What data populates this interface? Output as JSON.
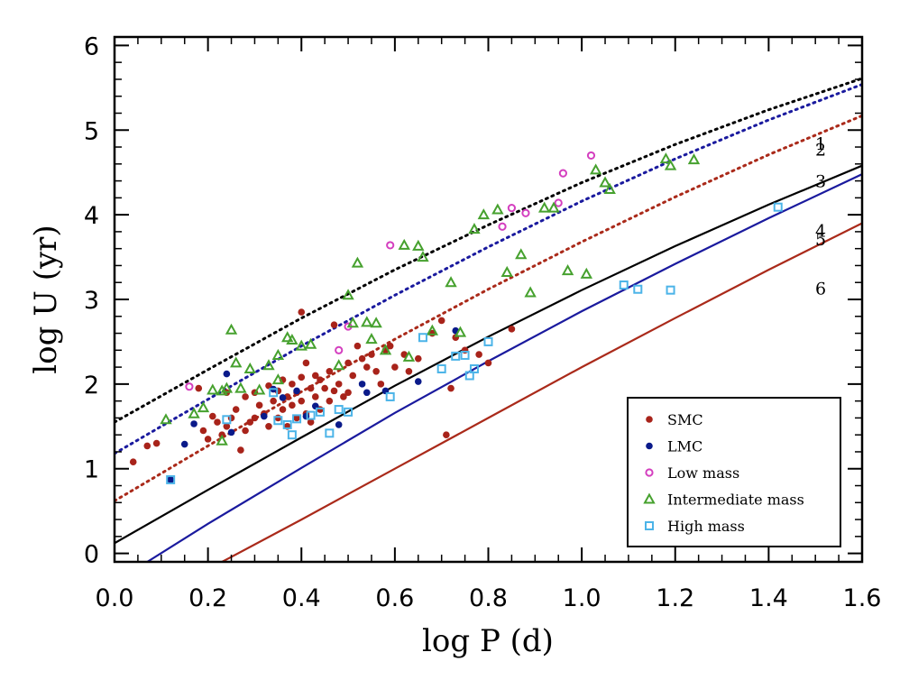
{
  "chart_data": {
    "type": "scatter",
    "title": "",
    "xlabel": "log P (d)",
    "ylabel": "log U (yr)",
    "xlim": [
      0.0,
      1.6
    ],
    "ylim": [
      -0.1,
      6.1
    ],
    "x_ticks": [
      {
        "value": 0.0,
        "label": "0.0"
      },
      {
        "value": 0.2,
        "label": "0.2"
      },
      {
        "value": 0.4,
        "label": "0.4"
      },
      {
        "value": 0.6,
        "label": "0.6"
      },
      {
        "value": 0.8,
        "label": "0.8"
      },
      {
        "value": 1.0,
        "label": "1.0"
      },
      {
        "value": 1.2,
        "label": "1.2"
      },
      {
        "value": 1.4,
        "label": "1.4"
      },
      {
        "value": 1.6,
        "label": "1.6"
      }
    ],
    "y_ticks": [
      {
        "value": 0,
        "label": "0"
      },
      {
        "value": 1,
        "label": "1"
      },
      {
        "value": 2,
        "label": "2"
      },
      {
        "value": 3,
        "label": "3"
      },
      {
        "value": 4,
        "label": "4"
      },
      {
        "value": 5,
        "label": "5"
      },
      {
        "value": 6,
        "label": "6"
      }
    ],
    "grid": false,
    "legend_position": "bottom-right",
    "curves": [
      {
        "label": "1",
        "color": "#000000",
        "style": "dotted",
        "x": [
          0.0,
          0.2,
          0.4,
          0.6,
          0.8,
          1.0,
          1.2,
          1.4,
          1.6
        ],
        "y": [
          1.55,
          2.17,
          2.78,
          3.35,
          3.88,
          4.38,
          4.83,
          5.24,
          5.61
        ]
      },
      {
        "label": "2",
        "color": "#1a1a9e",
        "style": "dotted",
        "x": [
          0.0,
          0.2,
          0.4,
          0.6,
          0.8,
          1.0,
          1.2,
          1.4,
          1.6
        ],
        "y": [
          1.18,
          1.82,
          2.45,
          3.05,
          3.62,
          4.16,
          4.66,
          5.12,
          5.54
        ]
      },
      {
        "label": "3",
        "color": "#aa2a1a",
        "style": "dotted",
        "x": [
          0.0,
          0.2,
          0.4,
          0.6,
          0.8,
          1.0,
          1.2,
          1.4,
          1.6
        ],
        "y": [
          0.62,
          1.27,
          1.91,
          2.53,
          3.12,
          3.68,
          4.21,
          4.71,
          5.17
        ]
      },
      {
        "label": "4",
        "color": "#000000",
        "style": "solid",
        "x": [
          0.0,
          0.2,
          0.4,
          0.6,
          0.8,
          1.0,
          1.2,
          1.4,
          1.6
        ],
        "y": [
          0.12,
          0.75,
          1.37,
          1.98,
          2.56,
          3.11,
          3.63,
          4.12,
          4.58
        ]
      },
      {
        "label": "5",
        "color": "#1a1a9e",
        "style": "solid",
        "x": [
          0.07,
          0.2,
          0.4,
          0.6,
          0.8,
          1.0,
          1.2,
          1.4,
          1.6
        ],
        "y": [
          -0.1,
          0.35,
          1.01,
          1.66,
          2.27,
          2.86,
          3.42,
          3.96,
          4.48
        ]
      },
      {
        "label": "6",
        "color": "#aa2a1a",
        "style": "solid",
        "x": [
          0.23,
          0.4,
          0.6,
          0.8,
          1.0,
          1.2,
          1.4,
          1.6
        ],
        "y": [
          -0.1,
          0.4,
          1.0,
          1.6,
          2.2,
          2.78,
          3.35,
          3.9
        ]
      }
    ],
    "series": [
      {
        "name": "SMC",
        "marker": "filled-circle",
        "color": "#a8231a",
        "x": [
          0.04,
          0.07,
          0.09,
          0.12,
          0.18,
          0.19,
          0.2,
          0.21,
          0.22,
          0.23,
          0.24,
          0.24,
          0.25,
          0.26,
          0.27,
          0.28,
          0.28,
          0.29,
          0.3,
          0.3,
          0.31,
          0.32,
          0.33,
          0.33,
          0.34,
          0.35,
          0.35,
          0.36,
          0.36,
          0.37,
          0.37,
          0.38,
          0.38,
          0.39,
          0.39,
          0.4,
          0.4,
          0.41,
          0.41,
          0.42,
          0.42,
          0.43,
          0.43,
          0.44,
          0.44,
          0.45,
          0.46,
          0.46,
          0.47,
          0.48,
          0.49,
          0.5,
          0.5,
          0.51,
          0.52,
          0.53,
          0.54,
          0.55,
          0.56,
          0.57,
          0.58,
          0.59,
          0.6,
          0.62,
          0.63,
          0.65,
          0.68,
          0.7,
          0.72,
          0.73,
          0.75,
          0.78,
          0.8,
          0.85,
          0.47,
          0.4,
          0.71
        ],
        "y": [
          1.08,
          1.27,
          1.3,
          0.87,
          1.95,
          1.45,
          1.35,
          1.62,
          1.55,
          1.4,
          1.9,
          1.5,
          1.6,
          1.7,
          1.22,
          1.45,
          1.85,
          1.55,
          1.9,
          1.6,
          1.75,
          1.65,
          1.98,
          1.5,
          1.8,
          1.6,
          1.92,
          2.05,
          1.7,
          1.85,
          1.5,
          2.0,
          1.75,
          1.9,
          1.6,
          2.08,
          1.8,
          2.25,
          1.65,
          1.95,
          1.55,
          2.1,
          1.85,
          2.05,
          1.7,
          1.95,
          2.15,
          1.8,
          1.92,
          2.0,
          1.85,
          2.25,
          1.9,
          2.1,
          2.45,
          2.3,
          2.2,
          2.35,
          2.15,
          2.0,
          2.4,
          2.45,
          2.2,
          2.35,
          2.15,
          2.3,
          2.6,
          2.75,
          1.95,
          2.55,
          2.4,
          2.35,
          2.25,
          2.65,
          2.7,
          2.85,
          1.4
        ]
      },
      {
        "name": "LMC",
        "marker": "filled-circle",
        "color": "#0a1a8a",
        "x": [
          0.12,
          0.15,
          0.17,
          0.24,
          0.25,
          0.32,
          0.34,
          0.36,
          0.39,
          0.41,
          0.43,
          0.48,
          0.53,
          0.54,
          0.58,
          0.65,
          0.73
        ],
        "y": [
          0.87,
          1.29,
          1.53,
          2.12,
          1.43,
          1.62,
          1.94,
          1.84,
          1.92,
          1.62,
          1.74,
          1.52,
          2.0,
          1.9,
          1.92,
          2.03,
          2.63
        ]
      },
      {
        "name": "Low mass",
        "marker": "open-circle",
        "color": "#d43fbf",
        "x": [
          0.16,
          0.48,
          0.5,
          0.59,
          0.83,
          0.85,
          0.88,
          0.95,
          0.96,
          1.02
        ],
        "y": [
          1.97,
          2.4,
          2.68,
          3.64,
          3.86,
          4.08,
          4.02,
          4.14,
          4.49,
          4.7
        ]
      },
      {
        "name": "Intermediate mass",
        "marker": "open-triangle",
        "color": "#46a12e",
        "x": [
          0.11,
          0.17,
          0.19,
          0.21,
          0.23,
          0.24,
          0.25,
          0.26,
          0.27,
          0.29,
          0.31,
          0.33,
          0.35,
          0.37,
          0.38,
          0.4,
          0.42,
          0.48,
          0.5,
          0.51,
          0.52,
          0.54,
          0.55,
          0.56,
          0.58,
          0.62,
          0.63,
          0.65,
          0.66,
          0.68,
          0.72,
          0.74,
          0.77,
          0.79,
          0.82,
          0.84,
          0.87,
          0.89,
          0.92,
          0.94,
          0.97,
          1.01,
          1.03,
          1.05,
          1.06,
          1.18,
          1.19,
          1.24,
          0.23,
          0.35
        ],
        "y": [
          1.58,
          1.65,
          1.72,
          1.93,
          1.92,
          1.95,
          2.64,
          2.25,
          1.95,
          2.18,
          1.93,
          2.22,
          2.34,
          2.55,
          2.52,
          2.45,
          2.47,
          2.22,
          3.05,
          2.72,
          3.43,
          2.73,
          2.53,
          2.72,
          2.4,
          3.64,
          2.32,
          3.63,
          3.5,
          2.63,
          3.2,
          2.61,
          3.83,
          4.0,
          4.06,
          3.32,
          3.53,
          3.08,
          4.08,
          4.08,
          3.34,
          3.3,
          4.53,
          4.38,
          4.3,
          4.66,
          4.58,
          4.65,
          1.33,
          2.05
        ]
      },
      {
        "name": "High mass",
        "marker": "open-square",
        "color": "#4cb4e8",
        "x": [
          0.12,
          0.24,
          0.35,
          0.37,
          0.38,
          0.39,
          0.42,
          0.44,
          0.46,
          0.48,
          0.5,
          0.59,
          0.66,
          0.7,
          0.73,
          0.75,
          0.76,
          0.77,
          0.8,
          1.09,
          1.12,
          1.19,
          1.42,
          0.34
        ],
        "y": [
          0.87,
          1.58,
          1.57,
          1.52,
          1.4,
          1.59,
          1.63,
          1.67,
          1.42,
          1.7,
          1.67,
          1.85,
          2.55,
          2.18,
          2.33,
          2.34,
          2.1,
          2.18,
          2.5,
          3.17,
          3.12,
          3.11,
          4.09,
          1.9
        ]
      }
    ]
  }
}
